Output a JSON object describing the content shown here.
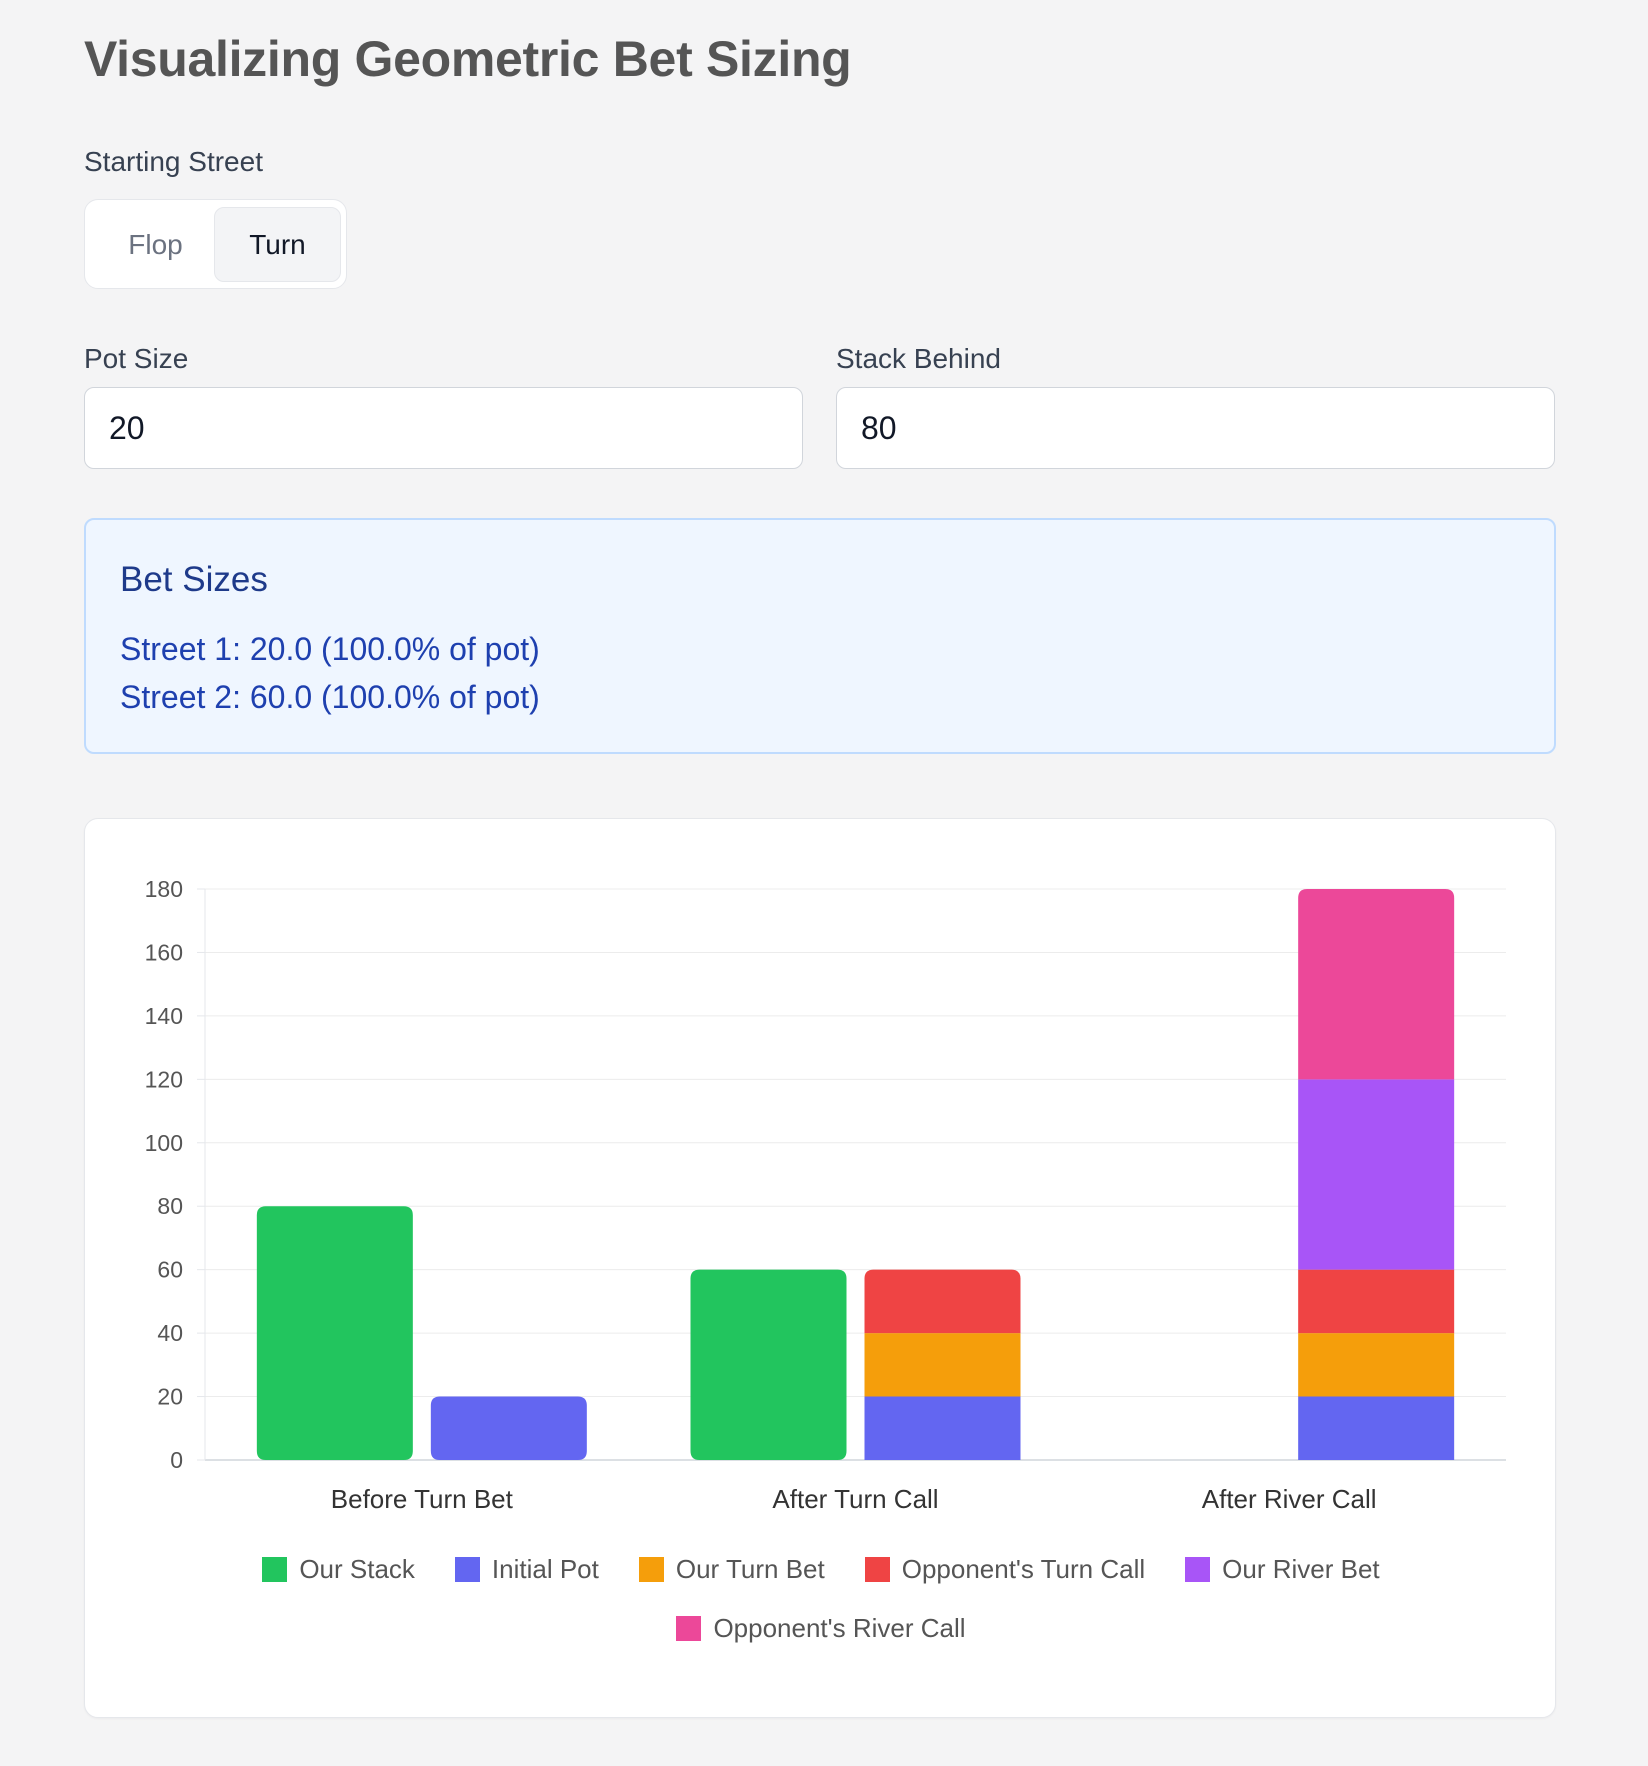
{
  "page": {
    "title": "Visualizing Geometric Bet Sizing"
  },
  "street": {
    "label": "Starting Street",
    "options": [
      "Flop",
      "Turn"
    ],
    "selected": "Turn"
  },
  "pot": {
    "label": "Pot Size",
    "value": "20"
  },
  "stack": {
    "label": "Stack Behind",
    "value": "80"
  },
  "bet_sizes": {
    "title": "Bet Sizes",
    "lines": [
      "Street 1: 20.0 (100.0% of pot)",
      "Street 2: 60.0 (100.0% of pot)"
    ]
  },
  "chart_data": {
    "type": "bar",
    "categories": [
      "Before Turn Bet",
      "After Turn Call",
      "After River Call"
    ],
    "ylim": [
      0,
      180
    ],
    "yticks": [
      0,
      20,
      40,
      60,
      80,
      100,
      120,
      140,
      160,
      180
    ],
    "grid": true,
    "legend": "bottom",
    "series": [
      {
        "name": "Our Stack",
        "stack": "stack",
        "color": "#22c55e",
        "values": [
          80,
          60,
          0
        ]
      },
      {
        "name": "Initial Pot",
        "stack": "pot",
        "color": "#6366f1",
        "values": [
          20,
          20,
          20
        ]
      },
      {
        "name": "Our Turn Bet",
        "stack": "pot",
        "color": "#f59e0b",
        "values": [
          0,
          20,
          20
        ]
      },
      {
        "name": "Opponent's Turn Call",
        "stack": "pot",
        "color": "#ef4444",
        "values": [
          0,
          20,
          20
        ]
      },
      {
        "name": "Our River Bet",
        "stack": "pot",
        "color": "#a855f7",
        "values": [
          0,
          0,
          60
        ]
      },
      {
        "name": "Opponent's River Call",
        "stack": "pot",
        "color": "#ec4899",
        "values": [
          0,
          0,
          60
        ]
      }
    ]
  }
}
